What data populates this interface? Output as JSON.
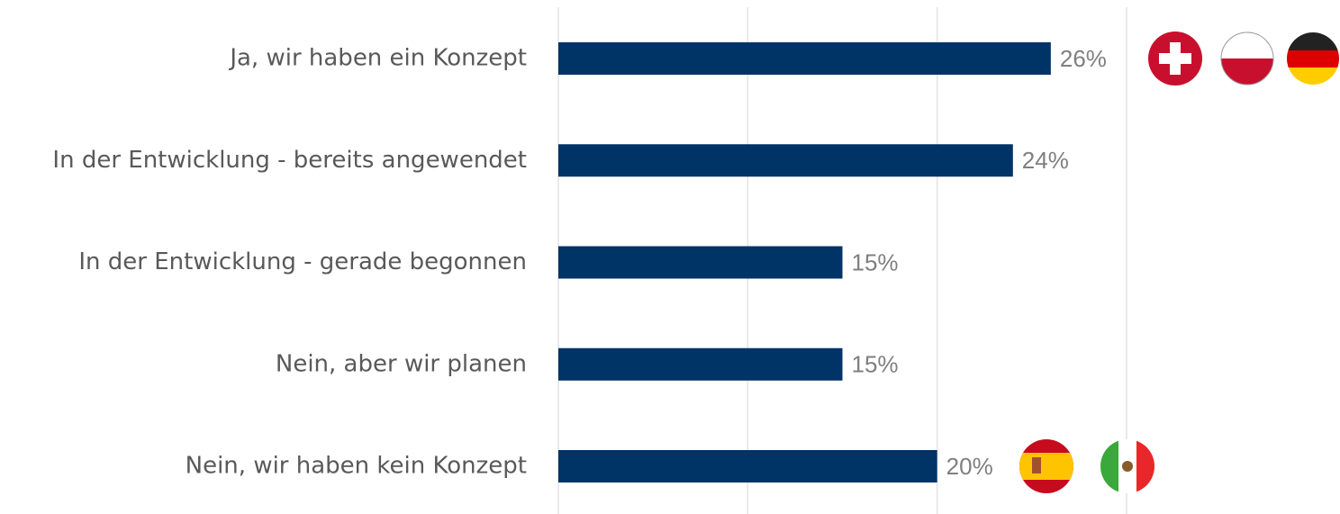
{
  "chart_data": {
    "type": "bar",
    "orientation": "horizontal",
    "categories": [
      "Ja, wir haben ein Konzept",
      "In der Entwicklung - bereits angewendet",
      "In der Entwicklung - gerade begonnen",
      "Nein, aber wir planen ",
      "Nein, wir haben kein Konzept"
    ],
    "values": [
      26,
      24,
      15,
      15,
      20
    ],
    "value_labels": [
      "26%",
      "24%",
      "15%",
      "15%",
      "20%"
    ],
    "color": "#003366",
    "xlim": [
      0,
      30
    ],
    "xticks": [
      0,
      10,
      20,
      30
    ],
    "grid": true
  }
}
